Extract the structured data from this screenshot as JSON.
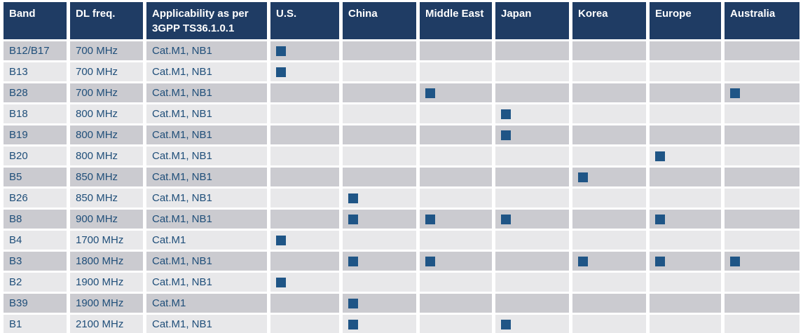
{
  "colors": {
    "header_bg": "#1F3C64",
    "row_dark": "#CBCBD0",
    "row_light": "#E8E8EA",
    "text_blue": "#1F4E79",
    "marker_blue": "#1F5586",
    "background": "#FFFFFF"
  },
  "icons": {
    "region_marker": "filled-square"
  },
  "table": {
    "columns": [
      {
        "key": "band",
        "label": "Band",
        "type": "text"
      },
      {
        "key": "dl_freq",
        "label": "DL freq.",
        "type": "text"
      },
      {
        "key": "applicability",
        "label": "Applicability as per 3GPP TS36.1.0.1",
        "type": "text"
      },
      {
        "key": "us",
        "label": "U.S.",
        "type": "marker"
      },
      {
        "key": "china",
        "label": "China",
        "type": "marker"
      },
      {
        "key": "middle_east",
        "label": "Middle East",
        "type": "marker"
      },
      {
        "key": "japan",
        "label": "Japan",
        "type": "marker"
      },
      {
        "key": "korea",
        "label": "Korea",
        "type": "marker"
      },
      {
        "key": "europe",
        "label": "Europe",
        "type": "marker"
      },
      {
        "key": "australia",
        "label": "Australia",
        "type": "marker"
      }
    ],
    "rows": [
      {
        "band": "B12/B17",
        "dl_freq": "700 MHz",
        "applicability": "Cat.M1, NB1",
        "regions": [
          "us"
        ]
      },
      {
        "band": "B13",
        "dl_freq": "700 MHz",
        "applicability": "Cat.M1, NB1",
        "regions": [
          "us"
        ]
      },
      {
        "band": "B28",
        "dl_freq": "700 MHz",
        "applicability": "Cat.M1, NB1",
        "regions": [
          "middle_east",
          "australia"
        ]
      },
      {
        "band": "B18",
        "dl_freq": "800 MHz",
        "applicability": "Cat.M1, NB1",
        "regions": [
          "japan"
        ]
      },
      {
        "band": "B19",
        "dl_freq": "800 MHz",
        "applicability": "Cat.M1, NB1",
        "regions": [
          "japan"
        ]
      },
      {
        "band": "B20",
        "dl_freq": "800 MHz",
        "applicability": "Cat.M1, NB1",
        "regions": [
          "europe"
        ]
      },
      {
        "band": "B5",
        "dl_freq": "850 MHz",
        "applicability": "Cat.M1, NB1",
        "regions": [
          "korea"
        ]
      },
      {
        "band": "B26",
        "dl_freq": "850 MHz",
        "applicability": "Cat.M1, NB1",
        "regions": [
          "china"
        ]
      },
      {
        "band": "B8",
        "dl_freq": "900 MHz",
        "applicability": "Cat.M1, NB1",
        "regions": [
          "china",
          "middle_east",
          "japan",
          "europe"
        ]
      },
      {
        "band": "B4",
        "dl_freq": "1700 MHz",
        "applicability": "Cat.M1",
        "regions": [
          "us"
        ]
      },
      {
        "band": "B3",
        "dl_freq": "1800 MHz",
        "applicability": "Cat.M1, NB1",
        "regions": [
          "china",
          "middle_east",
          "korea",
          "europe",
          "australia"
        ]
      },
      {
        "band": "B2",
        "dl_freq": "1900 MHz",
        "applicability": "Cat.M1, NB1",
        "regions": [
          "us"
        ]
      },
      {
        "band": "B39",
        "dl_freq": "1900 MHz",
        "applicability": "Cat.M1",
        "regions": [
          "china"
        ]
      },
      {
        "band": "B1",
        "dl_freq": "2100 MHz",
        "applicability": "Cat.M1, NB1",
        "regions": [
          "china",
          "japan"
        ]
      }
    ]
  }
}
